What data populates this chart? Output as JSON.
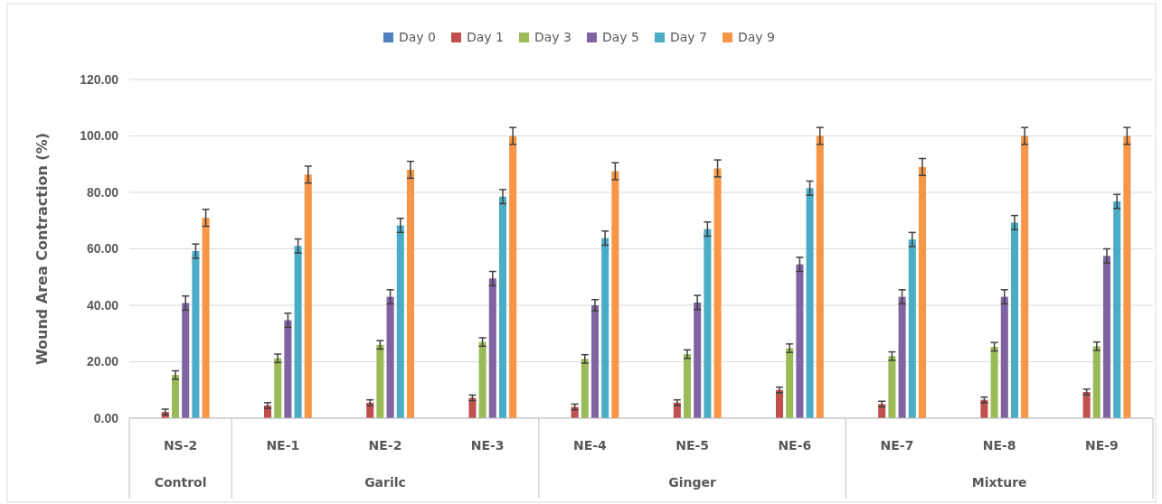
{
  "chart_data": {
    "type": "bar",
    "ylabel": "Wound Area Contraction (%)",
    "categories": [
      "NS-2",
      "NE-1",
      "NE-2",
      "NE-3",
      "NE-4",
      "NE-5",
      "NE-6",
      "NE-7",
      "NE-8",
      "NE-9"
    ],
    "series": [
      {
        "name": "Day 0",
        "color": "#4f81bd",
        "values": [
          0,
          0,
          0,
          0,
          0,
          0,
          0,
          0,
          0,
          0
        ]
      },
      {
        "name": "Day 1",
        "color": "#c0504d",
        "values": [
          2.2,
          4.5,
          5.5,
          7.2,
          4,
          5.5,
          10,
          5,
          6.5,
          9.3
        ],
        "errors": [
          1,
          1,
          1,
          1,
          1,
          1,
          1,
          1,
          1,
          1
        ]
      },
      {
        "name": "Day 3",
        "color": "#9bbb59",
        "values": [
          15.3,
          21.2,
          26,
          27,
          21,
          22.7,
          24.8,
          22,
          25.3,
          25.5
        ],
        "errors": [
          1.5,
          1.5,
          1.5,
          1.5,
          1.5,
          1.5,
          1.5,
          1.5,
          1.5,
          1.5
        ]
      },
      {
        "name": "Day 5",
        "color": "#8064a2",
        "values": [
          40.8,
          34.7,
          43,
          49.5,
          40,
          41,
          54.5,
          43,
          43,
          57.5
        ],
        "errors": [
          2.5,
          2.5,
          2.5,
          2.5,
          2,
          2.5,
          2.5,
          2.5,
          2.5,
          2.5
        ]
      },
      {
        "name": "Day 7",
        "color": "#4bacc6",
        "values": [
          59.2,
          61,
          68.3,
          78.5,
          63.8,
          67,
          81.5,
          63.3,
          69.3,
          76.8
        ],
        "errors": [
          2.5,
          2.5,
          2.5,
          2.5,
          2.5,
          2.5,
          2.5,
          2.5,
          2.5,
          2.5
        ]
      },
      {
        "name": "Day 9",
        "color": "#f79646",
        "values": [
          71,
          86.3,
          88,
          100,
          87.5,
          88.5,
          100,
          89,
          100,
          100
        ],
        "errors": [
          3,
          3,
          3,
          3,
          3,
          3,
          3,
          3,
          3,
          3
        ]
      }
    ],
    "ylim": [
      0,
      120
    ],
    "yticks": [
      {
        "value": 0,
        "label": "0.00"
      },
      {
        "value": 20,
        "label": "20.00"
      },
      {
        "value": 40,
        "label": "40.00"
      },
      {
        "value": 60,
        "label": "60.00"
      },
      {
        "value": 80,
        "label": "80.00"
      },
      {
        "value": 100,
        "label": "100.00"
      },
      {
        "value": 120,
        "label": "120.00"
      }
    ],
    "grid": "y",
    "legend": "top",
    "annotations": [
      "Control",
      "Garilc",
      "Ginger",
      "Mixture"
    ]
  }
}
